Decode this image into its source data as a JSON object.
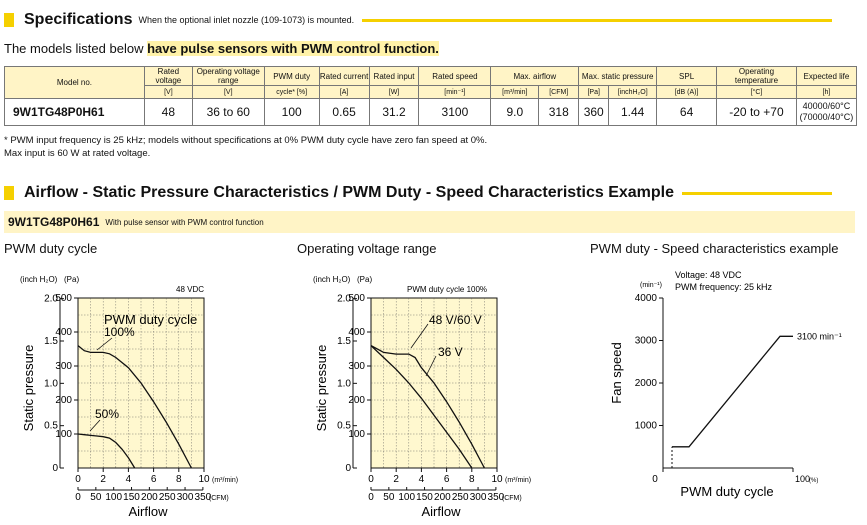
{
  "spec_header": {
    "title": "Specifications",
    "note": "When the optional inlet nozzle (109-1073) is mounted."
  },
  "models_line": {
    "prefix": "The models listed below ",
    "highlight": "have pulse sensors with PWM control function."
  },
  "table": {
    "columns": {
      "model": "Model no.",
      "rated_voltage": "Rated voltage",
      "rated_voltage_unit": "[V]",
      "operating_voltage_range": "Operating voltage range",
      "operating_voltage_range_unit": "[V]",
      "pwm_duty": "PWM duty",
      "pwm_duty_unit": "cycle* [%]",
      "rated_current": "Rated current",
      "rated_current_unit": "[A]",
      "rated_input": "Rated input",
      "rated_input_unit": "[W]",
      "rated_speed": "Rated speed",
      "rated_speed_unit": "[min⁻¹]",
      "max_airflow": "Max. airflow",
      "max_airflow_unit1": "[m³/min]",
      "max_airflow_unit2": "[CFM]",
      "max_static_pressure": "Max. static pressure",
      "max_static_pressure_unit1": "[Pa]",
      "max_static_pressure_unit2": "[inchH₂O]",
      "spl": "SPL",
      "spl_unit": "[dB (A)]",
      "operating_temperature": "Operating temperature",
      "operating_temperature_unit": "[°C]",
      "expected_life": "Expected life",
      "expected_life_unit": "[h]"
    },
    "row": {
      "model": "9W1TG48P0H61",
      "rated_voltage": "48",
      "operating_voltage_range": "36 to 60",
      "pwm_duty": "100",
      "rated_current": "0.65",
      "rated_input": "31.2",
      "rated_speed": "3100",
      "max_airflow_m3": "9.0",
      "max_airflow_cfm": "318",
      "max_static_pa": "360",
      "max_static_inch": "1.44",
      "spl": "64",
      "operating_temperature": "-20 to +70",
      "expected_life_1": "40000/60°C",
      "expected_life_2": "(70000/40°C)"
    }
  },
  "footnotes": {
    "line1": "* PWM input frequency is 25 kHz; models without specifications at 0% PWM duty cycle have zero fan speed at 0%.",
    "line2": "Max input is 60 W at rated voltage."
  },
  "airflow_header": {
    "title": "Airflow - Static Pressure Characteristics / PWM Duty - Speed Characteristics Example"
  },
  "model_banner": {
    "model": "9W1TG48P0H61",
    "note": "With pulse sensor with PWM control function"
  },
  "chart_titles": {
    "pwm_duty_cycle": "PWM duty cycle",
    "operating_voltage_range": "Operating voltage range",
    "pwm_speed": "PWM duty - Speed characteristics example"
  },
  "chart_data": [
    {
      "type": "line",
      "title": "PWM duty cycle",
      "xlabel": "Airflow",
      "ylabel": "Static pressure",
      "x_unit": "(m³/min)",
      "x2_unit": "(CFM)",
      "y_unit_inch": "(inch H₂O)",
      "y_unit_pa": "(Pa)",
      "condition": "48 VDC",
      "legend_title": "PWM duty cycle",
      "xlim": [
        0,
        10
      ],
      "ylim": [
        0,
        500
      ],
      "x_ticks": [
        "0",
        "2",
        "4",
        "6",
        "8",
        "10"
      ],
      "x2_ticks": [
        "0",
        "50",
        "100",
        "150",
        "200",
        "250",
        "300",
        "350"
      ],
      "y_ticks_pa": [
        "100",
        "200",
        "300",
        "400",
        "500"
      ],
      "y_ticks_inch": [
        "0",
        "0.5",
        "1.0",
        "1.5",
        "2.0"
      ],
      "series": [
        {
          "name": "100%",
          "x": [
            0,
            0.5,
            1.0,
            1.5,
            2.0,
            2.5,
            3.0,
            3.5,
            4.0,
            5.0,
            6.0,
            7.0,
            8.0,
            9.0
          ],
          "y": [
            360,
            345,
            340,
            340,
            340,
            336,
            325,
            310,
            295,
            250,
            195,
            135,
            70,
            0
          ]
        },
        {
          "name": "50%",
          "x": [
            0,
            0.5,
            1.0,
            1.5,
            2.0,
            2.5,
            3.0,
            3.5,
            4.0,
            4.5
          ],
          "y": [
            100,
            98,
            96,
            94,
            92,
            88,
            75,
            55,
            30,
            0
          ]
        }
      ]
    },
    {
      "type": "line",
      "title": "Operating voltage range",
      "xlabel": "Airflow",
      "ylabel": "Static pressure",
      "x_unit": "(m³/min)",
      "x2_unit": "(CFM)",
      "y_unit_inch": "(inch H₂O)",
      "y_unit_pa": "(Pa)",
      "condition": "PWM duty cycle 100%",
      "xlim": [
        0,
        10
      ],
      "ylim": [
        0,
        500
      ],
      "x_ticks": [
        "0",
        "2",
        "4",
        "6",
        "8",
        "10"
      ],
      "x2_ticks": [
        "0",
        "50",
        "100",
        "150",
        "200",
        "250",
        "300",
        "350"
      ],
      "y_ticks_pa": [
        "100",
        "200",
        "300",
        "400",
        "500"
      ],
      "y_ticks_inch": [
        "0",
        "0.5",
        "1.0",
        "1.5",
        "2.0"
      ],
      "series": [
        {
          "name": "48 V/60 V",
          "x": [
            0,
            1.0,
            2.0,
            3.0,
            3.5,
            4.0,
            5.0,
            6.0,
            7.0,
            8.0,
            9.0
          ],
          "y": [
            360,
            340,
            335,
            335,
            325,
            295,
            250,
            195,
            135,
            70,
            0
          ]
        },
        {
          "name": "36 V",
          "x": [
            0,
            1.0,
            2.0,
            3.0,
            4.0,
            5.0,
            6.0,
            7.0,
            8.0
          ],
          "y": [
            360,
            325,
            290,
            250,
            205,
            155,
            105,
            55,
            0
          ]
        }
      ]
    },
    {
      "type": "line",
      "title": "PWM duty - Speed characteristics example",
      "xlabel": "PWM duty cycle",
      "ylabel": "Fan speed",
      "x_unit": "(%)",
      "y_unit": "(min⁻¹)",
      "condition1": "Voltage: 48 VDC",
      "condition2": "PWM frequency: 25 kHz",
      "xlim": [
        0,
        100
      ],
      "ylim": [
        0,
        4000
      ],
      "x_ticks": [
        "0",
        "100"
      ],
      "y_ticks": [
        "1000",
        "2000",
        "3000",
        "4000"
      ],
      "end_label": "3100 min⁻¹",
      "series": [
        {
          "x": [
            0,
            10,
            20,
            90,
            100
          ],
          "y": [
            500,
            500,
            500,
            3100,
            3100
          ]
        }
      ]
    }
  ]
}
